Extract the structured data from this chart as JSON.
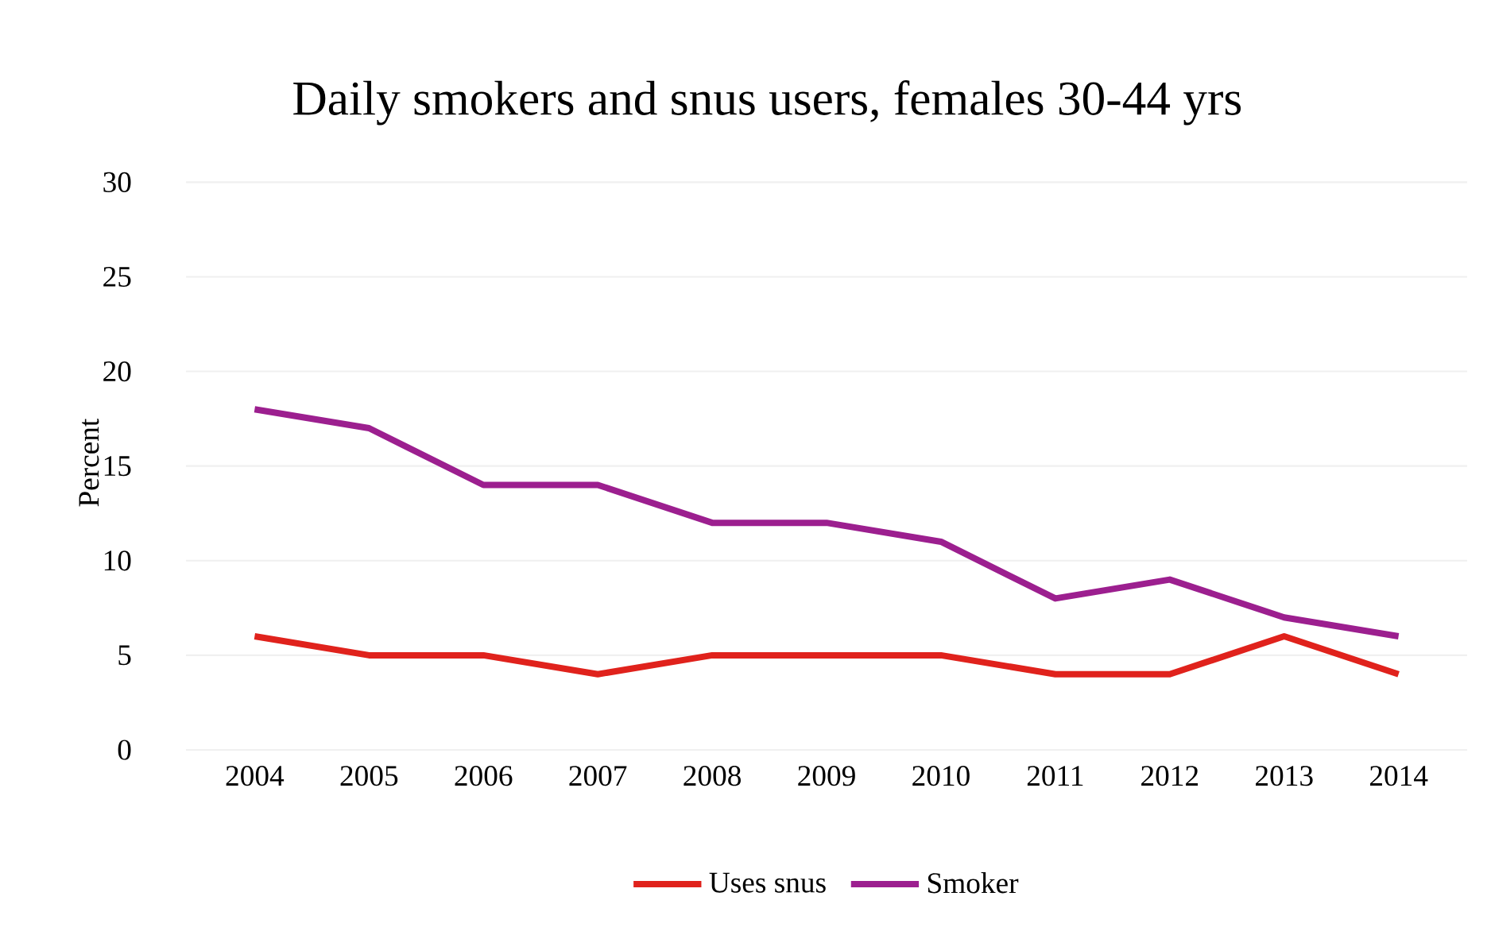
{
  "chart_data": {
    "type": "line",
    "title": "Daily smokers and snus users, females 30-44 yrs",
    "ylabel": "Percent",
    "categories": [
      "2004",
      "2005",
      "2006",
      "2007",
      "2008",
      "2009",
      "2010",
      "2011",
      "2012",
      "2013",
      "2014"
    ],
    "series": [
      {
        "name": "Uses snus",
        "color": "#e0221c",
        "values": [
          6,
          5,
          5,
          4,
          5,
          5,
          5,
          4,
          4,
          6,
          4
        ]
      },
      {
        "name": "Smoker",
        "color": "#9c1f8f",
        "values": [
          18,
          17,
          14,
          14,
          12,
          12,
          11,
          8,
          9,
          7,
          6
        ]
      }
    ],
    "ylim": [
      0,
      30
    ],
    "yticks": [
      0,
      5,
      10,
      15,
      20,
      25,
      30
    ],
    "grid": "y",
    "legend": "bottom",
    "marker": "none",
    "line_style": "solid"
  }
}
